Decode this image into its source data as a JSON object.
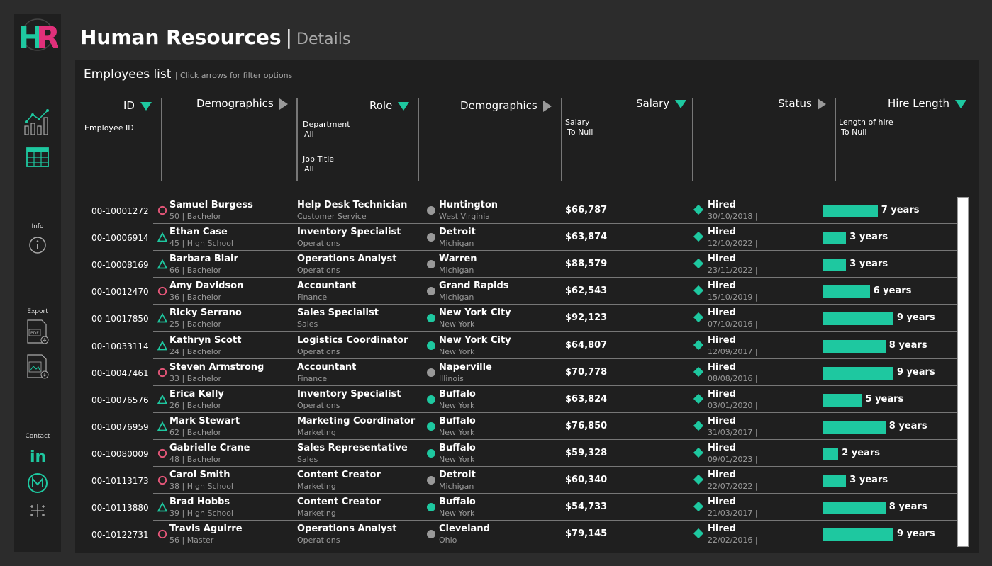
{
  "header": {
    "title": "Human Resources",
    "separator": "|",
    "subtitle": "Details"
  },
  "logo": {
    "text": "HR",
    "color_h": "#1ec8a0",
    "color_r": "#e0307a"
  },
  "sidebar": {
    "info_label": "Info",
    "export_label": "Export",
    "contact_label": "Contact",
    "pdf_text": "PDF",
    "linkedin_text": "in"
  },
  "panel": {
    "title": "Employees list",
    "hint": "| Click arrows for filter options"
  },
  "columns": {
    "id": "ID",
    "demographics": "Demographics",
    "role": "Role",
    "demographics2": "Demographics",
    "salary": "Salary",
    "status": "Status",
    "hire_length": "Hire Length"
  },
  "filters": {
    "employee_id": "Employee ID",
    "department_label": "Department",
    "department_value": "All",
    "job_title_label": "Job Title",
    "job_title_value": "All",
    "salary_label": "Salary",
    "salary_value": "To Null",
    "length_label": "Length of hire",
    "length_value": "To Null"
  },
  "colors": {
    "accent": "#1ec8a0",
    "female": "#e8577a",
    "male": "#1ec8a0",
    "loc_ny": "#1ec8a0",
    "loc_other": "#999999"
  },
  "rows": [
    {
      "id": "00-10001272",
      "gender": "female",
      "name": "Samuel Burgess",
      "demo": "50 | Bachelor",
      "role": "Help Desk Technician",
      "dept": "Customer Service",
      "loc": "other",
      "city": "Huntington",
      "state": "West Virginia",
      "salary": "$66,787",
      "status": "Hired",
      "date": "30/10/2018 |",
      "years_num": 7,
      "years": "7 years"
    },
    {
      "id": "00-10006914",
      "gender": "male",
      "name": "Ethan Case",
      "demo": "45 | High School",
      "role": "Inventory Specialist",
      "dept": "Operations",
      "loc": "other",
      "city": "Detroit",
      "state": "Michigan",
      "salary": "$63,874",
      "status": "Hired",
      "date": "12/10/2022 |",
      "years_num": 3,
      "years": "3 years"
    },
    {
      "id": "00-10008169",
      "gender": "male",
      "name": "Barbara Blair",
      "demo": "66 | Bachelor",
      "role": "Operations Analyst",
      "dept": "Operations",
      "loc": "other",
      "city": "Warren",
      "state": "Michigan",
      "salary": "$88,579",
      "status": "Hired",
      "date": "23/11/2022 |",
      "years_num": 3,
      "years": "3 years"
    },
    {
      "id": "00-10012470",
      "gender": "female",
      "name": "Amy Davidson",
      "demo": "36 | Bachelor",
      "role": "Accountant",
      "dept": "Finance",
      "loc": "other",
      "city": "Grand Rapids",
      "state": "Michigan",
      "salary": "$62,543",
      "status": "Hired",
      "date": "15/10/2019 |",
      "years_num": 6,
      "years": "6 years"
    },
    {
      "id": "00-10017850",
      "gender": "male",
      "name": "Ricky Serrano",
      "demo": "25 | Bachelor",
      "role": "Sales Specialist",
      "dept": "Sales",
      "loc": "ny",
      "city": "New York City",
      "state": "New York",
      "salary": "$92,123",
      "status": "Hired",
      "date": "07/10/2016 |",
      "years_num": 9,
      "years": "9 years"
    },
    {
      "id": "00-10033114",
      "gender": "male",
      "name": "Kathryn Scott",
      "demo": "24 | Bachelor",
      "role": "Logistics Coordinator",
      "dept": "Operations",
      "loc": "ny",
      "city": "New York City",
      "state": "New York",
      "salary": "$64,807",
      "status": "Hired",
      "date": "12/09/2017 |",
      "years_num": 8,
      "years": "8 years"
    },
    {
      "id": "00-10047461",
      "gender": "female",
      "name": "Steven Armstrong",
      "demo": "33 | Bachelor",
      "role": "Accountant",
      "dept": "Finance",
      "loc": "other",
      "city": "Naperville",
      "state": "Illinois",
      "salary": "$70,778",
      "status": "Hired",
      "date": "08/08/2016 |",
      "years_num": 9,
      "years": "9 years"
    },
    {
      "id": "00-10076576",
      "gender": "male",
      "name": "Erica Kelly",
      "demo": "26 | Bachelor",
      "role": "Inventory Specialist",
      "dept": "Operations",
      "loc": "ny",
      "city": "Buffalo",
      "state": "New York",
      "salary": "$63,824",
      "status": "Hired",
      "date": "03/01/2020 |",
      "years_num": 5,
      "years": "5 years"
    },
    {
      "id": "00-10076959",
      "gender": "male",
      "name": "Mark Stewart",
      "demo": "62 | Bachelor",
      "role": "Marketing Coordinator",
      "dept": "Marketing",
      "loc": "ny",
      "city": "Buffalo",
      "state": "New York",
      "salary": "$76,850",
      "status": "Hired",
      "date": "31/03/2017 |",
      "years_num": 8,
      "years": "8 years"
    },
    {
      "id": "00-10080009",
      "gender": "female",
      "name": "Gabrielle Crane",
      "demo": "48 | Bachelor",
      "role": "Sales Representative",
      "dept": "Sales",
      "loc": "ny",
      "city": "Buffalo",
      "state": "New York",
      "salary": "$59,328",
      "status": "Hired",
      "date": "09/01/2023 |",
      "years_num": 2,
      "years": "2 years"
    },
    {
      "id": "00-10113173",
      "gender": "female",
      "name": "Carol Smith",
      "demo": "38 | High School",
      "role": "Content Creator",
      "dept": "Marketing",
      "loc": "other",
      "city": "Detroit",
      "state": "Michigan",
      "salary": "$60,340",
      "status": "Hired",
      "date": "22/07/2022 |",
      "years_num": 3,
      "years": "3 years"
    },
    {
      "id": "00-10113880",
      "gender": "male",
      "name": "Brad Hobbs",
      "demo": "39 | High School",
      "role": "Content Creator",
      "dept": "Marketing",
      "loc": "ny",
      "city": "Buffalo",
      "state": "New York",
      "salary": "$54,733",
      "status": "Hired",
      "date": "21/03/2017 |",
      "years_num": 8,
      "years": "8 years"
    },
    {
      "id": "00-10122731",
      "gender": "female",
      "name": "Travis Aguirre",
      "demo": "56 | Master",
      "role": "Operations Analyst",
      "dept": "Operations",
      "loc": "other",
      "city": "Cleveland",
      "state": "Ohio",
      "salary": "$79,145",
      "status": "Hired",
      "date": "22/02/2016 |",
      "years_num": 9,
      "years": "9 years"
    }
  ]
}
